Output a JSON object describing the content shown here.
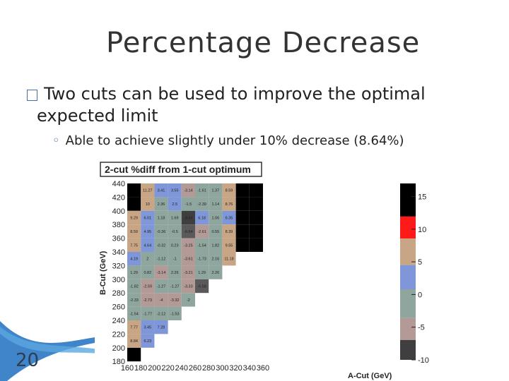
{
  "slide": {
    "title": "Percentage Decrease",
    "bullet_1": "Two cuts can be used to improve the optimal expected limit",
    "bullet_1_line1": "Two cuts can be used to improve the optimal",
    "bullet_1_line2": "expected limit",
    "bullet_2": "Able to achieve slightly under 10% decrease (8.64%)",
    "page_number": "20"
  },
  "colors": {
    "title": "#333333",
    "accent": "#4a6fa8",
    "deco_band": "#1f6fbf"
  },
  "chart_data": {
    "type": "heatmap",
    "title": "2-cut %diff from 1-cut optimum",
    "xlabel": "A-Cut (GeV)",
    "ylabel": "B-Cut (GeV)",
    "x_ticks": [
      "160",
      "180",
      "200",
      "220",
      "240",
      "260",
      "280",
      "300",
      "320",
      "340",
      "360"
    ],
    "y_ticks": [
      "180",
      "200",
      "220",
      "240",
      "260",
      "280",
      "300",
      "320",
      "340",
      "360",
      "380",
      "400",
      "420",
      "440"
    ],
    "xlim": [
      160,
      370
    ],
    "ylim": [
      180,
      440
    ],
    "z_ticks": [
      "15",
      "10",
      "5",
      "0",
      "-5",
      "-10"
    ],
    "zlim": [
      -10,
      17
    ],
    "grid": false,
    "cell_size": 20,
    "text_cells": [
      {
        "x": 180,
        "y": 420,
        "label": "11.27"
      },
      {
        "x": 200,
        "y": 420,
        "label": "3.41"
      },
      {
        "x": 220,
        "y": 420,
        "label": "3.55"
      },
      {
        "x": 240,
        "y": 420,
        "label": "-3.14"
      },
      {
        "x": 260,
        "y": 420,
        "label": "-1.61"
      },
      {
        "x": 280,
        "y": 420,
        "label": "1.37"
      },
      {
        "x": 300,
        "y": 420,
        "label": "8.59"
      },
      {
        "x": 180,
        "y": 400,
        "label": "10"
      },
      {
        "x": 200,
        "y": 400,
        "label": "2.36"
      },
      {
        "x": 220,
        "y": 400,
        "label": "2.5"
      },
      {
        "x": 240,
        "y": 400,
        "label": "-1.5"
      },
      {
        "x": 260,
        "y": 400,
        "label": "-2.39"
      },
      {
        "x": 280,
        "y": 400,
        "label": "1.14"
      },
      {
        "x": 300,
        "y": 400,
        "label": "8.76"
      },
      {
        "x": 160,
        "y": 380,
        "label": "9.29"
      },
      {
        "x": 180,
        "y": 380,
        "label": "6.01"
      },
      {
        "x": 200,
        "y": 380,
        "label": "1.18"
      },
      {
        "x": 220,
        "y": 380,
        "label": "1.69"
      },
      {
        "x": 240,
        "y": 380,
        "label": "-8.64"
      },
      {
        "x": 260,
        "y": 380,
        "label": "6.18"
      },
      {
        "x": 280,
        "y": 380,
        "label": "1.06"
      },
      {
        "x": 300,
        "y": 380,
        "label": "6.35"
      },
      {
        "x": 160,
        "y": 360,
        "label": "8.59"
      },
      {
        "x": 180,
        "y": 360,
        "label": "4.95"
      },
      {
        "x": 200,
        "y": 360,
        "label": "-0.36"
      },
      {
        "x": 220,
        "y": 360,
        "label": "-0.5"
      },
      {
        "x": 240,
        "y": 360,
        "label": "-6.64"
      },
      {
        "x": 260,
        "y": 360,
        "label": "-2.61"
      },
      {
        "x": 280,
        "y": 360,
        "label": "0.55"
      },
      {
        "x": 300,
        "y": 360,
        "label": "8.39"
      },
      {
        "x": 160,
        "y": 340,
        "label": "7.75"
      },
      {
        "x": 180,
        "y": 340,
        "label": "4.64"
      },
      {
        "x": 200,
        "y": 340,
        "label": "-0.32"
      },
      {
        "x": 220,
        "y": 340,
        "label": "0.23"
      },
      {
        "x": 240,
        "y": 340,
        "label": "-3.25"
      },
      {
        "x": 260,
        "y": 340,
        "label": "-1.54"
      },
      {
        "x": 280,
        "y": 340,
        "label": "1.82"
      },
      {
        "x": 300,
        "y": 340,
        "label": "9.55"
      },
      {
        "x": 160,
        "y": 320,
        "label": "4.19"
      },
      {
        "x": 180,
        "y": 320,
        "label": "2"
      },
      {
        "x": 200,
        "y": 320,
        "label": "-1.12"
      },
      {
        "x": 220,
        "y": 320,
        "label": "-1"
      },
      {
        "x": 240,
        "y": 320,
        "label": "-3.61"
      },
      {
        "x": 260,
        "y": 320,
        "label": "-1.73"
      },
      {
        "x": 280,
        "y": 320,
        "label": "2.16"
      },
      {
        "x": 300,
        "y": 320,
        "label": "11.18"
      },
      {
        "x": 160,
        "y": 300,
        "label": "1.29"
      },
      {
        "x": 180,
        "y": 300,
        "label": "0.82"
      },
      {
        "x": 200,
        "y": 300,
        "label": "-3.14"
      },
      {
        "x": 220,
        "y": 300,
        "label": "2.26"
      },
      {
        "x": 240,
        "y": 300,
        "label": "-3.21"
      },
      {
        "x": 260,
        "y": 300,
        "label": "1.29"
      },
      {
        "x": 280,
        "y": 300,
        "label": "2.26"
      },
      {
        "x": 160,
        "y": 280,
        "label": "-1.82"
      },
      {
        "x": 180,
        "y": 280,
        "label": "-2.59"
      },
      {
        "x": 200,
        "y": 280,
        "label": "-1.27"
      },
      {
        "x": 220,
        "y": 280,
        "label": "-1.27"
      },
      {
        "x": 240,
        "y": 280,
        "label": "-3.33"
      },
      {
        "x": 260,
        "y": 280,
        "label": "-6.58"
      },
      {
        "x": 160,
        "y": 260,
        "label": "-2.33"
      },
      {
        "x": 180,
        "y": 260,
        "label": "-2.73"
      },
      {
        "x": 200,
        "y": 260,
        "label": "-4"
      },
      {
        "x": 220,
        "y": 260,
        "label": "-3.32"
      },
      {
        "x": 240,
        "y": 260,
        "label": "-2"
      },
      {
        "x": 160,
        "y": 240,
        "label": "-1.54"
      },
      {
        "x": 180,
        "y": 240,
        "label": "-1.77"
      },
      {
        "x": 200,
        "y": 240,
        "label": "-2.12"
      },
      {
        "x": 220,
        "y": 240,
        "label": "-1.53"
      },
      {
        "x": 160,
        "y": 220,
        "label": "7.77"
      },
      {
        "x": 180,
        "y": 220,
        "label": "3.45"
      },
      {
        "x": 200,
        "y": 220,
        "label": "7.28"
      },
      {
        "x": 160,
        "y": 200,
        "label": "8.84"
      },
      {
        "x": 180,
        "y": 200,
        "label": "6.23"
      }
    ],
    "saturated_cells": [
      {
        "x": 160,
        "y": 420
      },
      {
        "x": 160,
        "y": 400
      },
      {
        "x": 320,
        "y": 420
      },
      {
        "x": 340,
        "y": 420
      },
      {
        "x": 320,
        "y": 400
      },
      {
        "x": 340,
        "y": 400
      },
      {
        "x": 320,
        "y": 380
      },
      {
        "x": 340,
        "y": 380
      },
      {
        "x": 320,
        "y": 360
      },
      {
        "x": 340,
        "y": 360
      },
      {
        "x": 320,
        "y": 340
      },
      {
        "x": 340,
        "y": 340
      },
      {
        "x": 160,
        "y": 180
      }
    ],
    "palette": [
      {
        "z": -10,
        "color": "#3f3f3f"
      },
      {
        "z": -7.5,
        "color": "#5a5a5a"
      },
      {
        "z": -5,
        "color": "#b39a97"
      },
      {
        "z": -2.5,
        "color": "#8fa69e"
      },
      {
        "z": 0,
        "color": "#8fa69e"
      },
      {
        "z": 2.5,
        "color": "#7f97d8"
      },
      {
        "z": 5,
        "color": "#7f97d8"
      },
      {
        "z": 7.5,
        "color": "#c8a584"
      },
      {
        "z": 10,
        "color": "#c8a584"
      },
      {
        "z": 12.5,
        "color": "#ff1a1a"
      },
      {
        "z": 15,
        "color": "#ff1a1a"
      },
      {
        "z": 17,
        "color": "#000000"
      }
    ],
    "colorbar_bands": [
      {
        "color": "#000000",
        "weight": 1.5
      },
      {
        "color": "#ff1a1a",
        "weight": 1
      },
      {
        "color": "#c8a584",
        "weight": 1.2
      },
      {
        "color": "#7f97d8",
        "weight": 1.1
      },
      {
        "color": "#8fa69e",
        "weight": 1.3
      },
      {
        "color": "#b39a97",
        "weight": 1
      },
      {
        "color": "#3f3f3f",
        "weight": 0.9
      }
    ]
  }
}
